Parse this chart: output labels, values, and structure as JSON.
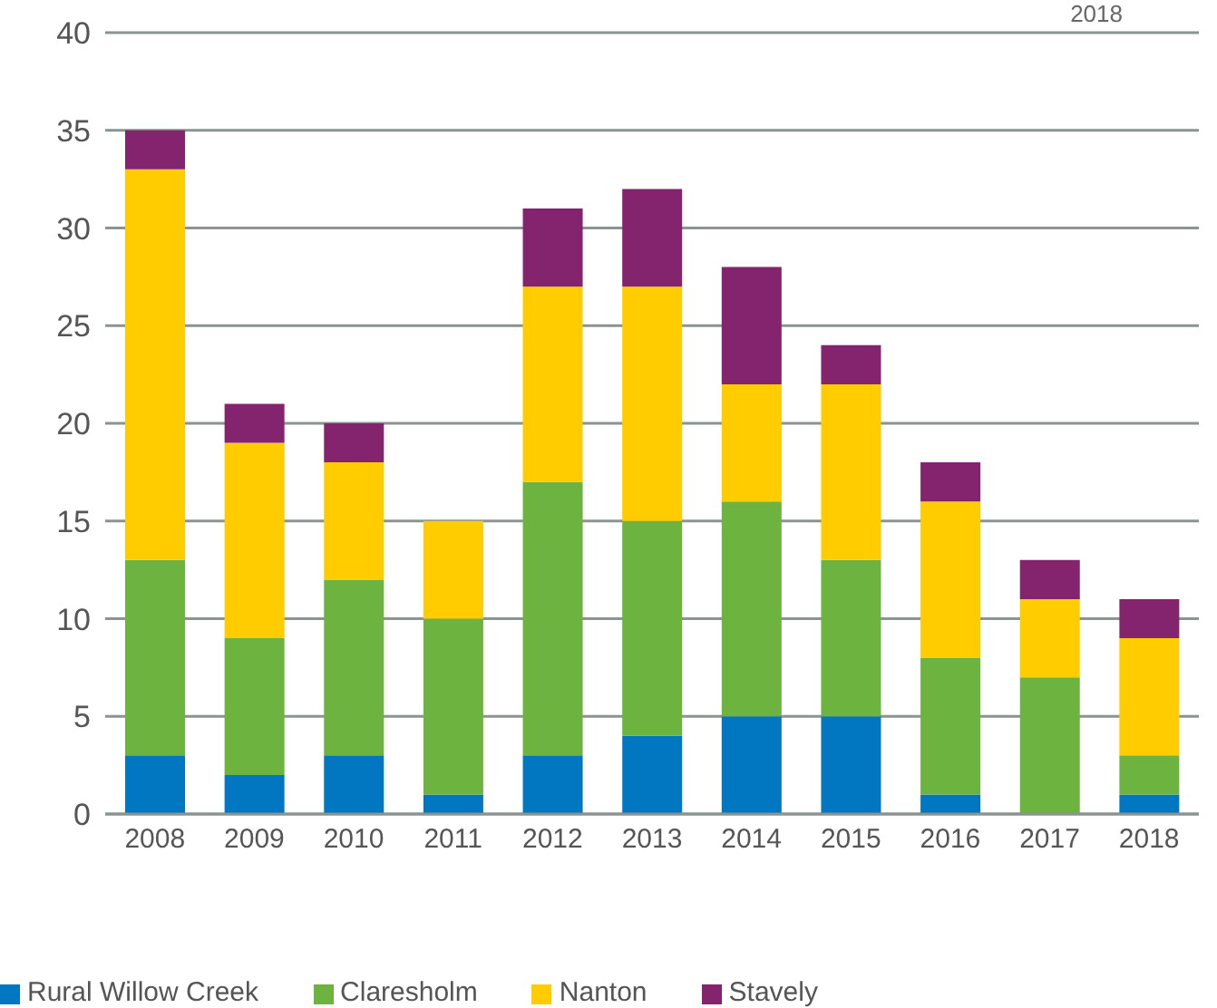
{
  "chart_data": {
    "type": "bar",
    "stacked": true,
    "annotations": [
      "2018"
    ],
    "categories": [
      "2008",
      "2009",
      "2010",
      "2011",
      "2012",
      "2013",
      "2014",
      "2015",
      "2016",
      "2017",
      "2018"
    ],
    "series": [
      {
        "name": "Rural Willow Creek",
        "color": "#0077c0",
        "values": [
          3,
          2,
          3,
          1,
          3,
          4,
          5,
          5,
          1,
          0,
          1
        ]
      },
      {
        "name": "Claresholm",
        "color": "#6db33f",
        "values": [
          10,
          7,
          9,
          9,
          14,
          11,
          11,
          8,
          7,
          7,
          2
        ]
      },
      {
        "name": "Nanton",
        "color": "#ffcc00",
        "values": [
          20,
          10,
          6,
          5,
          10,
          12,
          6,
          9,
          8,
          4,
          6
        ]
      },
      {
        "name": "Stavely",
        "color": "#84246e",
        "values": [
          2,
          2,
          2,
          0,
          4,
          5,
          6,
          2,
          2,
          2,
          2
        ]
      }
    ],
    "ylim": [
      0,
      40
    ],
    "yticks": [
      0,
      5,
      10,
      15,
      20,
      25,
      30,
      35,
      40
    ],
    "grid": "y",
    "legend": "bottom left"
  }
}
